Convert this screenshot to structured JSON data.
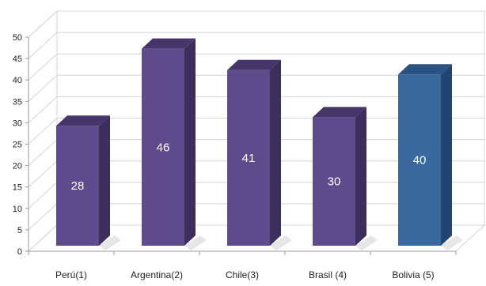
{
  "chart_data": {
    "type": "bar",
    "title": "",
    "xlabel": "",
    "ylabel": "",
    "ylim": [
      0,
      50
    ],
    "y_ticks": [
      0,
      5,
      10,
      15,
      20,
      25,
      30,
      35,
      40,
      45,
      50
    ],
    "grid": true,
    "three_d": true,
    "categories": [
      "Perú(1)",
      "Argentina(2)",
      "Chile(3)",
      "Brasil (4)",
      "Bolivia (5)"
    ],
    "values": [
      28,
      46,
      41,
      30,
      40
    ],
    "data_labels": [
      "28",
      "46",
      "41",
      "30",
      "40"
    ],
    "bar_colors": [
      "#5f4a8b",
      "#5f4a8b",
      "#5f4a8b",
      "#5f4a8b",
      "#3a69a0"
    ],
    "bar_side_colors": [
      "#3d2e5e",
      "#3d2e5e",
      "#3d2e5e",
      "#3d2e5e",
      "#214570"
    ],
    "bar_top_colors": [
      "#45356b",
      "#45356b",
      "#45356b",
      "#45356b",
      "#2a5282"
    ],
    "grid_color": "#d4d4d4",
    "axis_color": "#9a9a9a"
  }
}
